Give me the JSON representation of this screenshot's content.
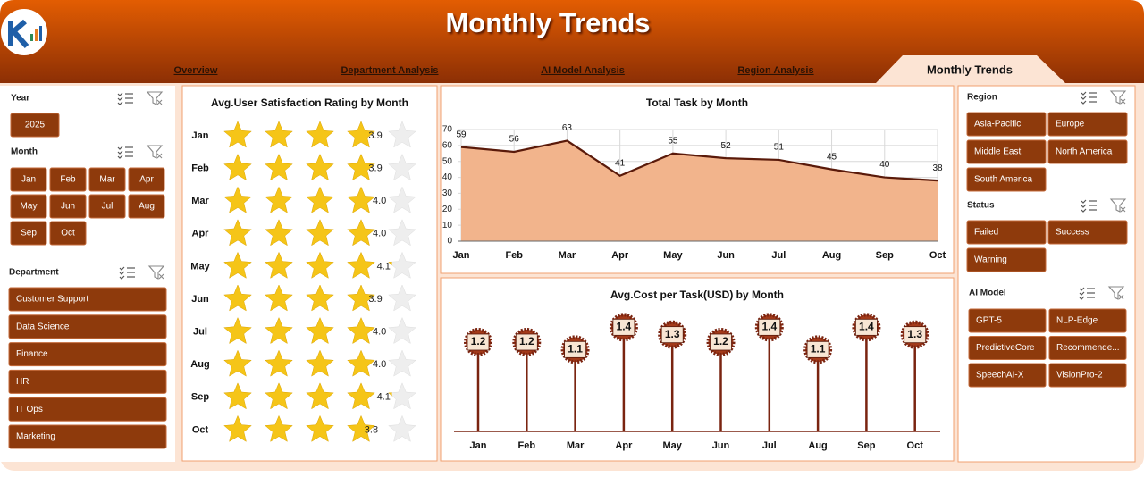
{
  "header": {
    "title": "Monthly Trends"
  },
  "nav": {
    "tabs": [
      "Overview",
      "Department Analysis",
      "AI Model Analysis",
      "Region Analysis",
      "Monthly Trends"
    ],
    "active": 4
  },
  "slicers": [
    {
      "title": "Year",
      "items": [
        "2025"
      ]
    },
    {
      "title": "Month",
      "items": [
        "Jan",
        "Feb",
        "Mar",
        "Apr",
        "May",
        "Jun",
        "Jul",
        "Aug",
        "Sep",
        "Oct"
      ]
    },
    {
      "title": "Department",
      "items": [
        "Customer Support",
        "Data Science",
        "Finance",
        "HR",
        "IT Ops",
        "Marketing"
      ]
    },
    {
      "title": "Region",
      "items": [
        "Asia-Pacific",
        "Europe",
        "Middle East",
        "North America",
        "South America"
      ]
    },
    {
      "title": "Status",
      "items": [
        "Failed",
        "Success",
        "Warning"
      ]
    },
    {
      "title": "AI Model",
      "items": [
        "GPT-5",
        "NLP-Edge",
        "PredictiveCore",
        "Recommende...",
        "SpeechAI-X",
        "VisionPro-2"
      ]
    }
  ],
  "chart_data": [
    {
      "type": "rating",
      "title": "Avg.User Satisfaction Rating by Month",
      "categories": [
        "Jan",
        "Feb",
        "Mar",
        "Apr",
        "May",
        "Jun",
        "Jul",
        "Aug",
        "Sep",
        "Oct"
      ],
      "values": [
        3.9,
        3.9,
        4.0,
        4.0,
        4.1,
        3.9,
        4.0,
        4.0,
        4.1,
        3.8
      ],
      "value_labels": [
        "3.9",
        "3.9",
        "4.0",
        "4.0",
        "4.1",
        "3.9",
        "4.0",
        "4.0",
        "4.1",
        "3.8"
      ],
      "xlim": [
        0,
        5
      ],
      "color": "#f5c518"
    },
    {
      "type": "area",
      "title": "Total Task by Month",
      "categories": [
        "Jan",
        "Feb",
        "Mar",
        "Apr",
        "May",
        "Jun",
        "Jul",
        "Aug",
        "Sep",
        "Oct"
      ],
      "values": [
        59,
        56,
        63,
        41,
        55,
        52,
        51,
        45,
        40,
        38
      ],
      "ylim": [
        0,
        70
      ],
      "yticks": [
        0,
        10,
        20,
        30,
        40,
        50,
        60,
        70
      ],
      "grid": true,
      "color": "#f2b48c"
    },
    {
      "type": "lollipop",
      "title": "Avg.Cost per Task(USD) by Month",
      "categories": [
        "Jan",
        "Feb",
        "Mar",
        "Apr",
        "May",
        "Jun",
        "Jul",
        "Aug",
        "Sep",
        "Oct"
      ],
      "values": [
        1.2,
        1.2,
        1.1,
        1.4,
        1.3,
        1.2,
        1.4,
        1.1,
        1.4,
        1.3
      ],
      "ylim": [
        0,
        1.5
      ],
      "color": "#7a2410"
    }
  ]
}
